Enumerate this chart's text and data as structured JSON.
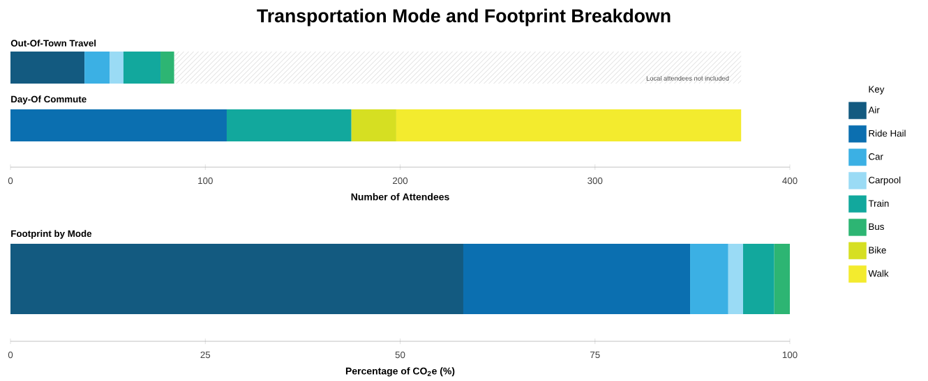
{
  "chart_data": [
    {
      "type": "bar",
      "orientation": "horizontal",
      "stacked": true,
      "title": "Transportation Mode and Footprint Breakdown",
      "categories": [
        "Out-Of-Town Travel",
        "Day-Of Commute"
      ],
      "xlabel": "Number of Attendees",
      "xlim": [
        0,
        400
      ],
      "xticks": [
        0,
        100,
        200,
        300,
        400
      ],
      "legend": "right",
      "legend_title": "Key",
      "grid": false,
      "annotations": [
        "Local attendees not included"
      ],
      "series": [
        {
          "name": "Air",
          "color": "#135a80",
          "values": [
            38,
            null
          ]
        },
        {
          "name": "Ride Hail",
          "color": "#0b6fb0",
          "values": [
            null,
            111
          ]
        },
        {
          "name": "Car",
          "color": "#3bb0e4",
          "values": [
            13,
            null
          ]
        },
        {
          "name": "Carpool",
          "color": "#9adbf5",
          "values": [
            7,
            null
          ]
        },
        {
          "name": "Train",
          "color": "#12a89d",
          "values": [
            19,
            64
          ]
        },
        {
          "name": "Bus",
          "color": "#2db573",
          "values": [
            7,
            null
          ]
        },
        {
          "name": "Bike",
          "color": "#d6df22",
          "values": [
            null,
            23
          ]
        },
        {
          "name": "Walk",
          "color": "#f3eb2e",
          "values": [
            null,
            177
          ]
        }
      ]
    },
    {
      "type": "bar",
      "orientation": "horizontal",
      "stacked": true,
      "categories": [
        "Footprint by Mode"
      ],
      "xlabel": "Percentage of CO$_{2}$e (%)",
      "xlim": [
        0,
        100
      ],
      "xticks": [
        0,
        25,
        50,
        75,
        100
      ],
      "grid": false,
      "series": [
        {
          "color": "#135a80",
          "values": [
            58.1
          ]
        },
        {
          "color": "#0b6fb0",
          "values": [
            29.1
          ]
        },
        {
          "color": "#3bb0e4",
          "values": [
            4.9
          ]
        },
        {
          "color": "#9adbf5",
          "values": [
            1.9
          ]
        },
        {
          "color": "#12a89d",
          "values": [
            4.0
          ]
        },
        {
          "color": "#2db573",
          "values": [
            2.0
          ]
        }
      ]
    }
  ]
}
